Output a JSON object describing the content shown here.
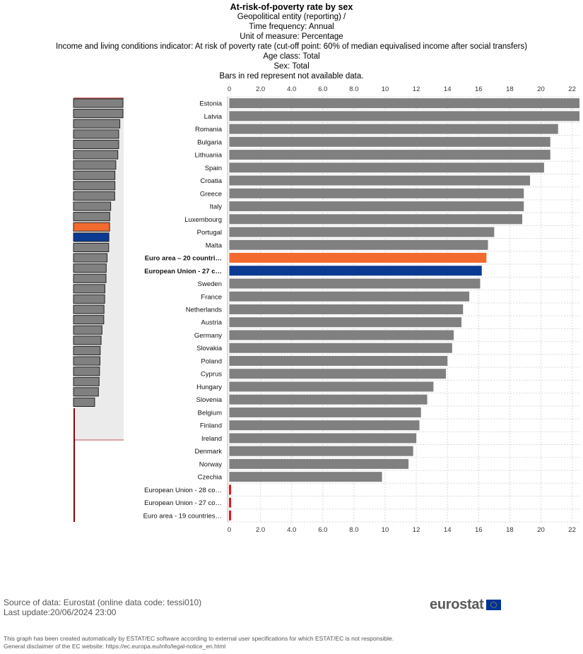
{
  "header": {
    "title": "At-risk-of-poverty rate by sex",
    "lines": [
      "Geopolitical entity (reporting) /",
      "Time frequency: Annual",
      "Unit of measure: Percentage",
      "Income and living conditions indicator: At risk of poverty rate (cut-off point: 60% of median equivalised income after social transfers)",
      "Age class: Total",
      "Sex: Total",
      "Bars in red represent not available data."
    ]
  },
  "chart_data": {
    "type": "bar",
    "orientation": "horizontal",
    "categories": [
      "Estonia",
      "Latvia",
      "Romania",
      "Bulgaria",
      "Lithuania",
      "Spain",
      "Croatia",
      "Greece",
      "Italy",
      "Luxembourg",
      "Portugal",
      "Malta",
      "Euro area – 20 countri…",
      "European Union - 27 c…",
      "Sweden",
      "France",
      "Netherlands",
      "Austria",
      "Germany",
      "Slovakia",
      "Poland",
      "Cyprus",
      "Hungary",
      "Slovenia",
      "Belgium",
      "Finland",
      "Ireland",
      "Denmark",
      "Norway",
      "Czechia",
      "European Union - 28 co…",
      "European Union - 27 co…",
      "Euro area - 19 countries…"
    ],
    "values": [
      22.5,
      22.5,
      21.1,
      20.6,
      20.6,
      20.2,
      19.3,
      18.9,
      18.9,
      18.8,
      17.0,
      16.6,
      16.5,
      16.2,
      16.1,
      15.4,
      15.0,
      14.9,
      14.4,
      14.3,
      14.0,
      13.9,
      13.1,
      12.7,
      12.3,
      12.2,
      12.0,
      11.8,
      11.5,
      9.8,
      null,
      null,
      null
    ],
    "highlight": {
      "Euro area – 20 countri…": "#f26a2e",
      "European Union - 27 c…": "#0a3a92"
    },
    "bold_categories": [
      "Euro area – 20 countri…",
      "European Union - 27 c…"
    ],
    "not_available": [
      "European Union - 28 co…",
      "European Union - 27 co…",
      "Euro area - 19 countries…"
    ],
    "xlim": [
      0,
      22.5
    ],
    "ticks": [
      0,
      2,
      4,
      6,
      8,
      10,
      12,
      14,
      16,
      18,
      20,
      22
    ],
    "tick_labels": [
      "0",
      "2.0",
      "4.0",
      "6.0",
      "8.0",
      "10",
      "12",
      "14",
      "16",
      "18",
      "20",
      "22"
    ],
    "grid": true,
    "colors": {
      "bar": "#808080",
      "na": "#e8141b",
      "grid": "#d9d9d9",
      "navigator_bg": "#ebebeb"
    }
  },
  "footer": {
    "source": "Source of data: Eurostat (online data code: tessi010)",
    "update": "Last update:20/06/2024 23:00",
    "logo": "eurostat",
    "disclaimer1": "This graph has been created automatically by ESTAT/EC software according to external user specifications for which ESTAT/EC is not responsible.",
    "disclaimer2": "General disclaimer of the EC website: https://ec.europa.eu/info/legal-notice_en.html"
  }
}
